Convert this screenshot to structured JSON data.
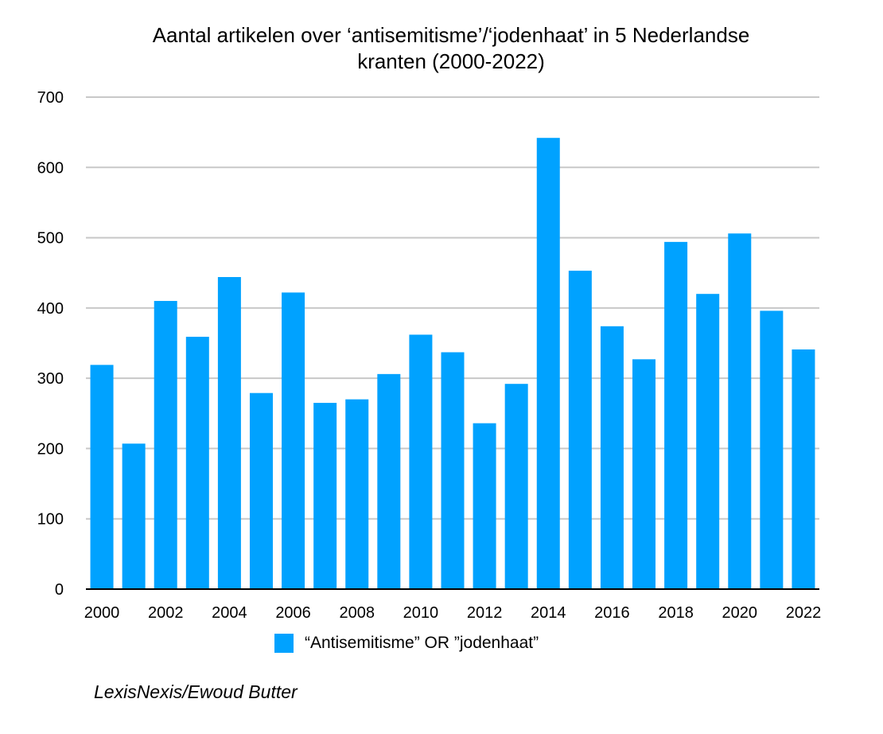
{
  "chart_data": {
    "type": "bar",
    "title_line1": "Aantal artikelen over ‘antisemitisme’/‘jodenhaat’ in 5 Nederlandse",
    "title_line2": "kranten (2000-2022)",
    "categories": [
      "2000",
      "2001",
      "2002",
      "2003",
      "2004",
      "2005",
      "2006",
      "2007",
      "2008",
      "2009",
      "2010",
      "2011",
      "2012",
      "2013",
      "2014",
      "2015",
      "2016",
      "2017",
      "2018",
      "2019",
      "2020",
      "2021",
      "2022"
    ],
    "x_tick_labels": [
      "2000",
      "2002",
      "2004",
      "2006",
      "2008",
      "2010",
      "2012",
      "2014",
      "2016",
      "2018",
      "2020",
      "2022"
    ],
    "series": [
      {
        "name": "“Antisemitisme” OR ”jodenhaat”",
        "color": "#00A2FF",
        "values": [
          319,
          207,
          410,
          359,
          444,
          279,
          422,
          265,
          270,
          306,
          362,
          337,
          236,
          292,
          642,
          453,
          374,
          327,
          494,
          420,
          506,
          396,
          341
        ]
      }
    ],
    "ylim": [
      0,
      700
    ],
    "y_ticks": [
      0,
      100,
      200,
      300,
      400,
      500,
      600,
      700
    ],
    "grid": true,
    "legend": "bottom-center",
    "xlabel": "",
    "ylabel": "",
    "source": "LexisNexis/Ewoud Butter"
  }
}
